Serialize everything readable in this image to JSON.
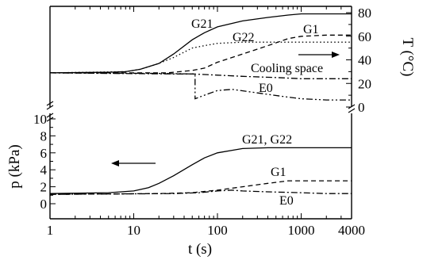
{
  "chart_data": [
    {
      "type": "line",
      "id": "temperature",
      "xlabel": "t (s)",
      "ylabel": "T (°C)",
      "x_scale": "log",
      "xlim": [
        1,
        4000
      ],
      "ylim": [
        0,
        80
      ],
      "y_ticks": [
        0,
        20,
        40,
        60,
        80
      ],
      "y_axis_side": "right",
      "grid": false,
      "legend": "none",
      "annotations": [
        "Cooling space"
      ],
      "series": [
        {
          "name": "G21",
          "style": "solid",
          "points": [
            [
              1,
              29
            ],
            [
              5,
              29.5
            ],
            [
              8,
              30
            ],
            [
              12,
              32
            ],
            [
              20,
              37
            ],
            [
              30,
              45
            ],
            [
              50,
              57
            ],
            [
              70,
              63
            ],
            [
              100,
              68
            ],
            [
              200,
              73
            ],
            [
              400,
              76
            ],
            [
              700,
              78
            ],
            [
              1000,
              79
            ],
            [
              4000,
              79
            ]
          ]
        },
        {
          "name": "G22",
          "style": "dotted",
          "points": [
            [
              1,
              29
            ],
            [
              8,
              30
            ],
            [
              12,
              32
            ],
            [
              20,
              37
            ],
            [
              30,
              42
            ],
            [
              50,
              50
            ],
            [
              70,
              52
            ],
            [
              100,
              54
            ],
            [
              200,
              55
            ],
            [
              400,
              55
            ],
            [
              700,
              55
            ],
            [
              1000,
              55
            ],
            [
              4000,
              55
            ]
          ]
        },
        {
          "name": "G1",
          "style": "dashed",
          "points": [
            [
              1,
              29
            ],
            [
              15,
              29
            ],
            [
              25,
              29
            ],
            [
              50,
              31
            ],
            [
              70,
              33
            ],
            [
              100,
              38
            ],
            [
              200,
              45
            ],
            [
              400,
              52
            ],
            [
              700,
              58
            ],
            [
              1000,
              60
            ],
            [
              2000,
              61
            ],
            [
              4000,
              61
            ]
          ]
        },
        {
          "name": "",
          "style": "dashdot",
          "points": [
            [
              1,
              29
            ],
            [
              30,
              28
            ],
            [
              50,
              28
            ],
            [
              100,
              27
            ],
            [
              200,
              26
            ],
            [
              500,
              25
            ],
            [
              1000,
              24
            ],
            [
              4000,
              24
            ]
          ]
        },
        {
          "name": "E0",
          "style": "dashdotdot",
          "points": [
            [
              1,
              29
            ],
            [
              20,
              28.5
            ],
            [
              50,
              28
            ],
            [
              54,
              28
            ],
            [
              54,
              7
            ],
            [
              70,
              10
            ],
            [
              100,
              14
            ],
            [
              150,
              15
            ],
            [
              300,
              12
            ],
            [
              600,
              9
            ],
            [
              1000,
              7
            ],
            [
              2000,
              6
            ],
            [
              4000,
              6
            ]
          ]
        }
      ]
    },
    {
      "type": "line",
      "id": "pressure",
      "xlabel": "t (s)",
      "ylabel": "p (kPa)",
      "x_scale": "log",
      "xlim": [
        1,
        4000
      ],
      "ylim": [
        0,
        10
      ],
      "y_ticks": [
        0,
        2,
        4,
        6,
        8,
        10
      ],
      "x_ticks": [
        1,
        10,
        100,
        1000,
        4000
      ],
      "y_axis_side": "left",
      "grid": false,
      "legend": "none",
      "series": [
        {
          "name": "G21, G22",
          "style": "solid",
          "points": [
            [
              1,
              1.2
            ],
            [
              5,
              1.3
            ],
            [
              10,
              1.5
            ],
            [
              15,
              1.9
            ],
            [
              20,
              2.4
            ],
            [
              30,
              3.3
            ],
            [
              50,
              4.6
            ],
            [
              70,
              5.4
            ],
            [
              100,
              6.0
            ],
            [
              150,
              6.3
            ],
            [
              200,
              6.5
            ],
            [
              400,
              6.6
            ],
            [
              1000,
              6.6
            ],
            [
              4000,
              6.6
            ]
          ]
        },
        {
          "name": "G1",
          "style": "dashed",
          "points": [
            [
              1,
              1.1
            ],
            [
              20,
              1.2
            ],
            [
              50,
              1.3
            ],
            [
              100,
              1.6
            ],
            [
              200,
              2.0
            ],
            [
              400,
              2.4
            ],
            [
              700,
              2.7
            ],
            [
              1000,
              2.7
            ],
            [
              2000,
              2.7
            ],
            [
              4000,
              2.7
            ]
          ]
        },
        {
          "name": "E0",
          "style": "dashdot",
          "points": [
            [
              1,
              1.1
            ],
            [
              30,
              1.2
            ],
            [
              60,
              1.3
            ],
            [
              100,
              1.5
            ],
            [
              150,
              1.6
            ],
            [
              200,
              1.5
            ],
            [
              400,
              1.4
            ],
            [
              1000,
              1.3
            ],
            [
              2000,
              1.2
            ],
            [
              4000,
              1.2
            ]
          ]
        }
      ]
    }
  ]
}
